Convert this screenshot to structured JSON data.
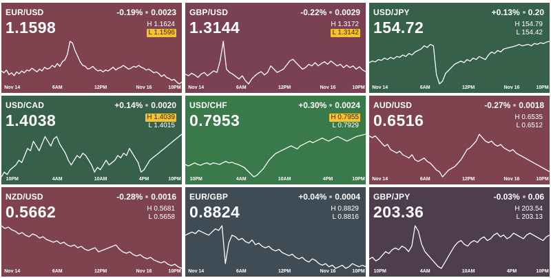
{
  "colors": {
    "down": "#7a4153",
    "up": "#37604b",
    "neutral": "#3f4c55",
    "down_strong": "#7f4350",
    "up_bright": "#3a7a4a",
    "plum": "#4e3d4d",
    "highlight": "#f6c231"
  },
  "tiles": [
    {
      "pair": "EUR/USD",
      "change_pct": "-0.19%",
      "change_abs": "0.0023",
      "price": "1.1598",
      "high": "H 1.1624",
      "low": "L 1.1596",
      "flag": "low",
      "color": "down_strong",
      "ticks": [
        "Nov 14",
        "6AM",
        "12PM",
        "Nov 16",
        "10PM"
      ],
      "series": [
        50,
        52,
        49,
        54,
        52,
        55,
        51,
        53,
        50,
        52,
        49,
        50,
        47,
        49,
        51,
        48,
        50,
        46,
        48,
        47,
        44,
        46,
        42,
        45,
        40,
        38,
        32,
        18,
        20,
        28,
        34,
        40,
        44,
        45,
        48,
        47,
        45,
        48,
        50,
        49,
        51,
        49,
        50,
        48,
        46,
        49,
        47,
        46,
        44,
        46,
        48,
        47,
        45,
        46,
        44,
        46,
        47,
        49,
        48,
        50,
        52,
        51,
        53,
        56,
        54,
        57,
        58,
        60,
        59,
        62,
        64,
        62
      ]
    },
    {
      "pair": "GBP/USD",
      "change_pct": "-0.22%",
      "change_abs": "0.0029",
      "price": "1.3144",
      "high": "H 1.3172",
      "low": "L 1.3142",
      "flag": "low",
      "color": "down",
      "ticks": [
        "Nov 14",
        "6AM",
        "12PM",
        "Nov 16",
        "10PM"
      ],
      "series": [
        46,
        48,
        45,
        47,
        50,
        46,
        44,
        48,
        45,
        42,
        44,
        30,
        6,
        40,
        44,
        46,
        49,
        52,
        48,
        54,
        58,
        52,
        48,
        45,
        43,
        47,
        44,
        36,
        40,
        44,
        42,
        40,
        35,
        30,
        28,
        32,
        36,
        40,
        38,
        34,
        36,
        32,
        36,
        33,
        31,
        34,
        30,
        33,
        36,
        34,
        38,
        35,
        38,
        36,
        40,
        37,
        41,
        43
      ]
    },
    {
      "pair": "USD/JPY",
      "change_pct": "+0.13%",
      "change_abs": "0.20",
      "price": "154.72",
      "high": "H 154.79",
      "low": "L 154.42",
      "flag": "",
      "color": "up",
      "ticks": [
        "Nov 14",
        "6AM",
        "12PM",
        "Nov 16",
        "10PM"
      ],
      "series": [
        34,
        32,
        33,
        30,
        31,
        28,
        30,
        27,
        29,
        26,
        27,
        24,
        26,
        22,
        24,
        20,
        18,
        16,
        12,
        14,
        10,
        12,
        50,
        62,
        58,
        48,
        44,
        40,
        36,
        34,
        32,
        34,
        30,
        32,
        28,
        30,
        26,
        28,
        30,
        24,
        20,
        22,
        18,
        20,
        16,
        15,
        14,
        13,
        12,
        10,
        12,
        11,
        10,
        12,
        9,
        10,
        8,
        9,
        7,
        6
      ]
    },
    {
      "pair": "USD/CAD",
      "change_pct": "+0.14%",
      "change_abs": "0.0020",
      "price": "1.4038",
      "high": "H 1.4039",
      "low": "L 1.4015",
      "flag": "high",
      "color": "up",
      "ticks": [
        "10PM",
        "4AM",
        "10AM",
        "4PM",
        "10PM"
      ],
      "series": [
        54,
        50,
        52,
        48,
        46,
        44,
        40,
        42,
        36,
        30,
        32,
        24,
        28,
        32,
        26,
        20,
        24,
        28,
        22,
        20,
        26,
        30,
        34,
        40,
        44,
        40,
        36,
        38,
        34,
        36,
        40,
        44,
        50,
        46,
        48,
        44,
        40,
        44,
        42,
        40,
        36,
        38,
        34,
        36,
        30,
        34,
        38,
        42,
        50,
        48,
        44,
        40,
        38,
        36,
        34,
        32,
        30,
        28,
        26,
        24,
        22,
        20,
        18
      ]
    },
    {
      "pair": "USD/CHF",
      "change_pct": "+0.30%",
      "change_abs": "0.0024",
      "price": "0.7953",
      "high": "H 0.7955",
      "low": "L 0.7929",
      "flag": "high",
      "color": "up_bright",
      "ticks": [
        "10PM",
        "4AM",
        "10AM",
        "4PM",
        "10PM"
      ],
      "series": [
        40,
        42,
        40,
        38,
        40,
        41,
        39,
        38,
        40,
        38,
        39,
        40,
        38,
        36,
        38,
        37,
        39,
        40,
        42,
        44,
        48,
        52,
        56,
        54,
        50,
        46,
        40,
        34,
        30,
        26,
        24,
        22,
        20,
        18,
        16,
        18,
        20,
        16,
        14,
        12,
        10,
        12,
        10,
        8,
        6,
        8,
        10,
        8,
        6,
        4,
        6,
        8,
        10,
        8,
        6,
        4,
        3,
        2,
        1
      ]
    },
    {
      "pair": "AUD/USD",
      "change_pct": "-0.27%",
      "change_abs": "0.0018",
      "price": "0.6516",
      "high": "H 0.6535",
      "low": "L 0.6512",
      "flag": "",
      "color": "down_strong",
      "ticks": [
        "Nov 14",
        "6AM",
        "12PM",
        "Nov 16",
        "10PM"
      ],
      "series": [
        14,
        16,
        14,
        18,
        22,
        26,
        24,
        30,
        32,
        34,
        32,
        36,
        38,
        40,
        36,
        42,
        44,
        42,
        40,
        44,
        46,
        50,
        54,
        56,
        62,
        58,
        54,
        52,
        50,
        46,
        42,
        36,
        30,
        28,
        24,
        20,
        12,
        16,
        20,
        22,
        20,
        24,
        26,
        24,
        28,
        30,
        32,
        30,
        34,
        36,
        38,
        40,
        42,
        44,
        46,
        48,
        50,
        52,
        54,
        56
      ]
    },
    {
      "pair": "NZD/USD",
      "change_pct": "-0.28%",
      "change_abs": "0.0016",
      "price": "0.5662",
      "high": "H 0.5681",
      "low": "L 0.5658",
      "flag": "",
      "color": "down_strong",
      "ticks": [
        "Nov 14",
        "6AM",
        "12PM",
        "Nov 16",
        "10PM"
      ],
      "series": [
        18,
        22,
        20,
        24,
        26,
        30,
        28,
        32,
        34,
        30,
        32,
        36,
        34,
        38,
        40,
        42,
        40,
        44,
        42,
        46,
        48,
        46,
        50,
        48,
        52,
        54,
        52,
        50,
        56,
        54,
        52,
        50,
        48,
        46,
        52,
        56,
        58,
        56,
        60,
        62,
        60,
        64,
        66,
        64,
        68,
        70,
        72,
        70,
        74,
        76,
        74,
        78,
        80
      ]
    },
    {
      "pair": "EUR/GBP",
      "change_pct": "+0.04%",
      "change_abs": "0.0004",
      "price": "0.8824",
      "high": "H 0.8829",
      "low": "L 0.8816",
      "flag": "",
      "color": "neutral",
      "ticks": [
        "Nov 14",
        "6AM",
        "12PM",
        "Nov 16",
        "10PM"
      ],
      "series": [
        20,
        18,
        16,
        18,
        14,
        16,
        18,
        20,
        16,
        12,
        14,
        8,
        56,
        30,
        20,
        22,
        26,
        24,
        28,
        30,
        26,
        32,
        30,
        34,
        36,
        34,
        38,
        40,
        38,
        42,
        44,
        46,
        44,
        48,
        50,
        48,
        52,
        54,
        50,
        52,
        56,
        58,
        56,
        60,
        58,
        62,
        60,
        58,
        62,
        60,
        56,
        58,
        60,
        58,
        60
      ]
    },
    {
      "pair": "GBP/JPY",
      "change_pct": "-0.03%",
      "change_abs": "0.06",
      "price": "203.36",
      "high": "H 203.54",
      "low": "L 203.13",
      "flag": "",
      "color": "plum",
      "ticks": [
        "10PM",
        "4AM",
        "10AM",
        "4PM",
        "10PM"
      ],
      "series": [
        48,
        46,
        50,
        48,
        44,
        40,
        42,
        38,
        36,
        38,
        34,
        36,
        40,
        34,
        12,
        18,
        32,
        40,
        44,
        48,
        52,
        56,
        58,
        52,
        46,
        40,
        34,
        30,
        28,
        32,
        34,
        30,
        28,
        30,
        26,
        24,
        28,
        26,
        22,
        20,
        24,
        22,
        26,
        24,
        20,
        22,
        24,
        26,
        22,
        20,
        22,
        24,
        26,
        28,
        24,
        22
      ]
    }
  ]
}
